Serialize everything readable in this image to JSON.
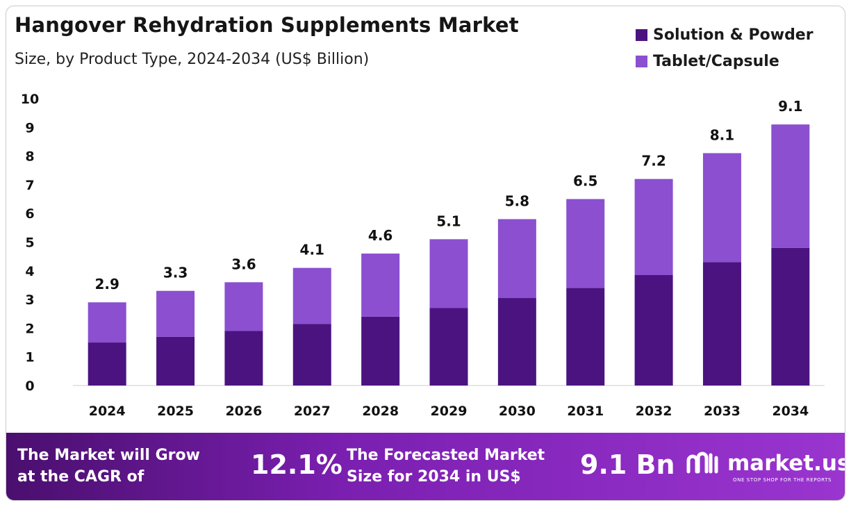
{
  "header": {
    "title": "Hangover Rehydration Supplements Market",
    "subtitle": "Size, by Product Type, 2024-2034 (US$ Billion)"
  },
  "colors": {
    "solution": "#4b1380",
    "tablet": "#8b4fd0",
    "axis": "#cccccc"
  },
  "chart_data": {
    "type": "bar",
    "stacked": true,
    "categories": [
      "2024",
      "2025",
      "2026",
      "2027",
      "2028",
      "2029",
      "2030",
      "2031",
      "2032",
      "2033",
      "2034"
    ],
    "series": [
      {
        "name": "Solution & Powder",
        "values": [
          1.5,
          1.7,
          1.9,
          2.15,
          2.4,
          2.7,
          3.05,
          3.4,
          3.85,
          4.3,
          4.8
        ]
      },
      {
        "name": "Tablet/Capsule",
        "values": [
          1.4,
          1.6,
          1.7,
          1.95,
          2.2,
          2.4,
          2.75,
          3.1,
          3.35,
          3.8,
          4.3
        ]
      }
    ],
    "totals": [
      "2.9",
      "3.3",
      "3.6",
      "4.1",
      "4.6",
      "5.1",
      "5.8",
      "6.5",
      "7.2",
      "8.1",
      "9.1"
    ],
    "yticks": [
      "0",
      "1",
      "2",
      "3",
      "4",
      "5",
      "6",
      "7",
      "8",
      "9",
      "10"
    ],
    "ylim": [
      0,
      10
    ],
    "legend_position": "top-right",
    "grid": false
  },
  "footer": {
    "cagr_label": "The Market will Grow at the CAGR of",
    "cagr_value": "12.1%",
    "forecast_label": "The Forecasted Market Size for 2034 in US$",
    "forecast_value": "9.1 Bn",
    "brand": "market.us",
    "tagline": "ONE STOP SHOP FOR THE REPORTS"
  }
}
